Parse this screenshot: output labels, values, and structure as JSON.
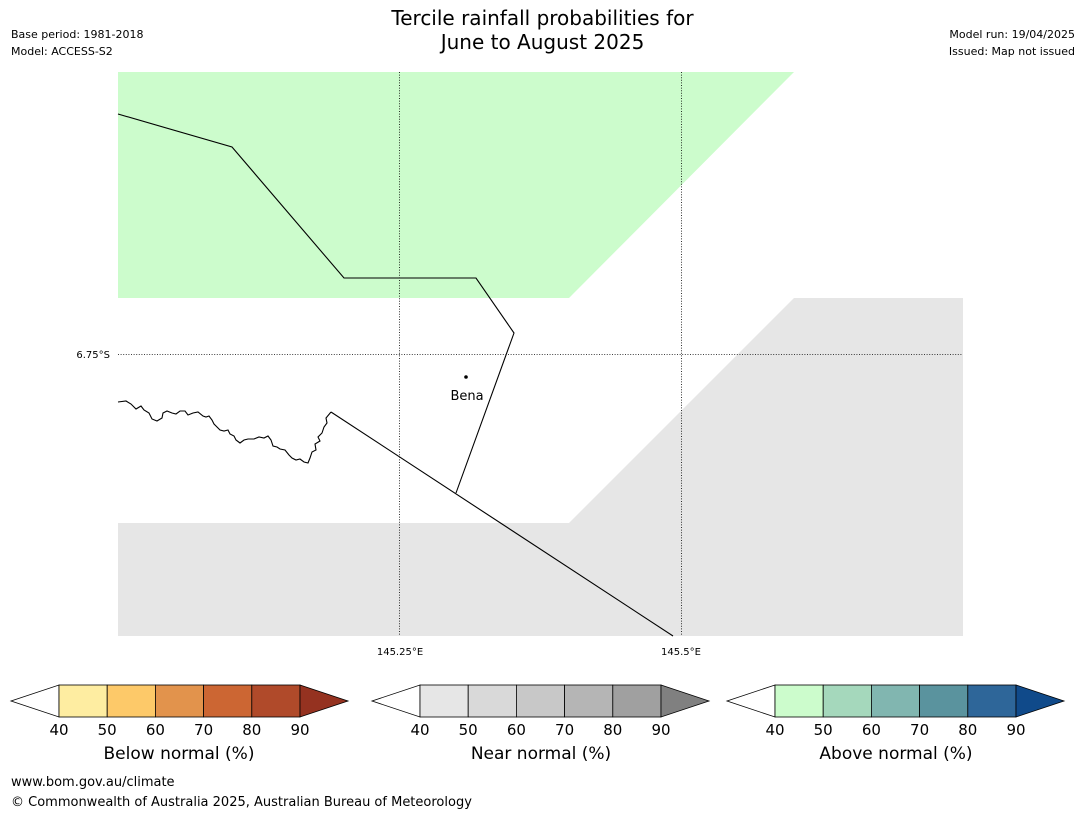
{
  "title": {
    "line1": "Tercile rainfall probabilities for",
    "line2": "June to August 2025"
  },
  "info_left": {
    "base_period": "Base period: 1981-2018",
    "model": "Model: ACCESS-S2"
  },
  "info_right": {
    "model_run": "Model run: 19/04/2025",
    "issued": "Issued: Map not issued"
  },
  "map": {
    "lat_label": "6.75°S",
    "lon_labels": [
      "145.25°E",
      "145.5°E"
    ],
    "place_name": "Bena",
    "region_colors": {
      "above_normal_40_50": "#ccfccc",
      "near_normal_40_50": "#e6e6e6",
      "boundary": "#000000"
    }
  },
  "colorbars": [
    {
      "title": "Below normal (%)",
      "ticks": [
        "40",
        "50",
        "60",
        "70",
        "80",
        "90"
      ],
      "colors": [
        "#ffffff",
        "#feeda1",
        "#fdc969",
        "#e2934c",
        "#cc6633",
        "#b04a2a",
        "#953220"
      ]
    },
    {
      "title": "Near normal (%)",
      "ticks": [
        "40",
        "50",
        "60",
        "70",
        "80",
        "90"
      ],
      "colors": [
        "#ffffff",
        "#e6e6e6",
        "#d9d9d9",
        "#c8c8c8",
        "#b5b5b5",
        "#a0a0a0",
        "#808080"
      ]
    },
    {
      "title": "Above normal (%)",
      "ticks": [
        "40",
        "50",
        "60",
        "70",
        "80",
        "90"
      ],
      "colors": [
        "#ffffff",
        "#ccfccc",
        "#a5d8bc",
        "#81b6b0",
        "#5a939e",
        "#2e6699",
        "#104a8a"
      ]
    }
  ],
  "footer": {
    "url": "www.bom.gov.au/climate",
    "copyright": "© Commonwealth of Australia 2025, Australian Bureau of Meteorology"
  }
}
